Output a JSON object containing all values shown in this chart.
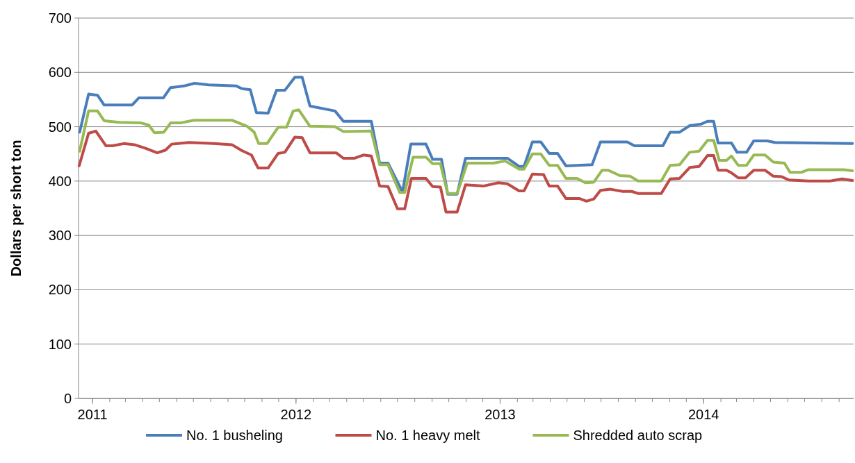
{
  "chart_data": {
    "type": "line",
    "ylabel": "Dollars per short ton",
    "ylim": [
      0,
      700
    ],
    "yticks": [
      0,
      100,
      200,
      300,
      400,
      500,
      600,
      700
    ],
    "xlim": [
      "2010-12-07",
      "2014-09-27"
    ],
    "xticks": [
      {
        "value": "2011-01-01",
        "label": "2011"
      },
      {
        "value": "2012-01-01",
        "label": "2012"
      },
      {
        "value": "2013-01-01",
        "label": "2013"
      },
      {
        "value": "2014-01-01",
        "label": "2014"
      }
    ],
    "grid": "y",
    "legend": "bottom",
    "line_style": "solid",
    "marker": "none",
    "series": [
      {
        "name": "No. 1 busheling",
        "color": "#4a7ebb",
        "x": [
          "2010-12-09",
          "2010-12-25",
          "2011-01-10",
          "2011-01-22",
          "2011-03-13",
          "2011-03-25",
          "2011-05-08",
          "2011-05-21",
          "2011-06-14",
          "2011-07-03",
          "2011-07-28",
          "2011-09-16",
          "2011-09-26",
          "2011-10-11",
          "2011-10-22",
          "2011-11-12",
          "2011-11-27",
          "2011-12-12",
          "2011-12-30",
          "2012-01-12",
          "2012-01-26",
          "2012-03-11",
          "2012-03-26",
          "2012-05-15",
          "2012-05-30",
          "2012-06-14",
          "2012-07-10",
          "2012-07-25",
          "2012-08-21",
          "2012-09-02",
          "2012-09-18",
          "2012-09-29",
          "2012-10-16",
          "2012-10-31",
          "2013-01-14",
          "2013-02-04",
          "2013-02-13",
          "2013-02-28",
          "2013-03-15",
          "2013-03-30",
          "2013-04-14",
          "2013-04-29",
          "2013-06-15",
          "2013-06-30",
          "2013-08-17",
          "2013-08-30",
          "2013-10-20",
          "2013-11-02",
          "2013-11-19",
          "2013-12-07",
          "2013-12-28",
          "2014-01-08",
          "2014-01-19",
          "2014-01-27",
          "2014-02-20",
          "2014-03-02",
          "2014-03-19",
          "2014-04-01",
          "2014-04-25",
          "2014-05-09",
          "2014-09-25"
        ],
        "values": [
          490,
          560,
          558,
          540,
          540,
          553,
          553,
          572,
          575,
          580,
          577,
          575,
          570,
          568,
          526,
          525,
          567,
          567,
          591,
          591,
          538,
          529,
          510,
          510,
          433,
          433,
          380,
          468,
          468,
          440,
          440,
          376,
          376,
          442,
          442,
          427,
          427,
          472,
          472,
          451,
          451,
          428,
          430,
          472,
          472,
          465,
          465,
          490,
          490,
          502,
          505,
          510,
          510,
          470,
          470,
          453,
          453,
          474,
          474,
          471,
          469
        ]
      },
      {
        "name": "No. 1 heavy melt",
        "color": "#be4b48",
        "x": [
          "2010-12-08",
          "2010-12-25",
          "2011-01-07",
          "2011-01-25",
          "2011-02-06",
          "2011-02-26",
          "2011-03-17",
          "2011-04-07",
          "2011-04-27",
          "2011-05-12",
          "2011-05-23",
          "2011-06-23",
          "2011-08-06",
          "2011-09-08",
          "2011-09-26",
          "2011-10-13",
          "2011-10-25",
          "2011-11-12",
          "2011-11-30",
          "2011-12-12",
          "2011-12-30",
          "2012-01-12",
          "2012-01-26",
          "2012-03-13",
          "2012-03-26",
          "2012-04-15",
          "2012-05-01",
          "2012-05-15",
          "2012-05-30",
          "2012-06-14",
          "2012-07-01",
          "2012-07-14",
          "2012-07-26",
          "2012-08-21",
          "2012-09-02",
          "2012-09-16",
          "2012-09-26",
          "2012-10-16",
          "2012-10-31",
          "2012-12-03",
          "2012-12-29",
          "2013-01-14",
          "2013-02-04",
          "2013-02-13",
          "2013-02-28",
          "2013-03-20",
          "2013-03-30",
          "2013-04-14",
          "2013-04-29",
          "2013-05-23",
          "2013-06-05",
          "2013-06-18",
          "2013-06-30",
          "2013-07-18",
          "2013-08-09",
          "2013-08-25",
          "2013-09-06",
          "2013-10-17",
          "2013-11-02",
          "2013-11-19",
          "2013-12-07",
          "2013-12-24",
          "2014-01-08",
          "2014-01-19",
          "2014-01-27",
          "2014-02-11",
          "2014-02-20",
          "2014-03-04",
          "2014-03-17",
          "2014-04-01",
          "2014-04-21",
          "2014-05-06",
          "2014-05-21",
          "2014-06-03",
          "2014-07-08",
          "2014-08-15",
          "2014-09-06",
          "2014-09-25"
        ],
        "values": [
          428,
          488,
          492,
          465,
          465,
          469,
          467,
          460,
          452,
          457,
          468,
          471,
          469,
          467,
          456,
          448,
          424,
          424,
          451,
          453,
          481,
          480,
          452,
          452,
          442,
          442,
          448,
          446,
          391,
          390,
          349,
          349,
          405,
          405,
          390,
          389,
          343,
          343,
          393,
          391,
          397,
          395,
          382,
          382,
          413,
          412,
          391,
          391,
          368,
          368,
          363,
          367,
          383,
          385,
          381,
          381,
          377,
          377,
          404,
          405,
          425,
          427,
          447,
          447,
          420,
          420,
          415,
          406,
          406,
          420,
          420,
          409,
          408,
          402,
          400,
          400,
          404,
          401
        ]
      },
      {
        "name": "Shredded auto scrap",
        "color": "#98b954",
        "x": [
          "2010-12-09",
          "2010-12-25",
          "2011-01-10",
          "2011-01-22",
          "2011-02-18",
          "2011-03-29",
          "2011-04-12",
          "2011-04-22",
          "2011-05-09",
          "2011-05-21",
          "2011-06-07",
          "2011-07-02",
          "2011-09-08",
          "2011-10-05",
          "2011-10-18",
          "2011-10-26",
          "2011-11-10",
          "2011-11-30",
          "2011-12-15",
          "2011-12-27",
          "2012-01-06",
          "2012-01-26",
          "2012-03-11",
          "2012-03-26",
          "2012-05-15",
          "2012-05-30",
          "2012-06-14",
          "2012-07-05",
          "2012-07-14",
          "2012-07-29",
          "2012-08-21",
          "2012-09-02",
          "2012-09-16",
          "2012-09-29",
          "2012-10-16",
          "2012-11-03",
          "2012-12-20",
          "2013-01-10",
          "2013-02-04",
          "2013-02-13",
          "2013-02-28",
          "2013-03-15",
          "2013-03-30",
          "2013-04-14",
          "2013-04-29",
          "2013-05-19",
          "2013-06-03",
          "2013-06-18",
          "2013-07-03",
          "2013-07-14",
          "2013-08-04",
          "2013-08-22",
          "2013-09-06",
          "2013-10-17",
          "2013-11-02",
          "2013-11-19",
          "2013-12-07",
          "2013-12-24",
          "2014-01-08",
          "2014-01-19",
          "2014-01-29",
          "2014-02-11",
          "2014-02-20",
          "2014-03-04",
          "2014-03-19",
          "2014-04-01",
          "2014-04-21",
          "2014-05-06",
          "2014-05-26",
          "2014-06-05",
          "2014-06-25",
          "2014-07-08",
          "2014-09-10",
          "2014-09-25"
        ],
        "values": [
          455,
          529,
          529,
          511,
          508,
          507,
          503,
          489,
          490,
          507,
          507,
          512,
          512,
          501,
          490,
          469,
          469,
          499,
          499,
          529,
          531,
          501,
          500,
          491,
          492,
          430,
          430,
          379,
          379,
          444,
          444,
          432,
          432,
          377,
          377,
          433,
          433,
          437,
          422,
          422,
          450,
          450,
          429,
          429,
          405,
          405,
          397,
          398,
          420,
          420,
          410,
          409,
          400,
          400,
          429,
          430,
          453,
          455,
          475,
          475,
          438,
          438,
          446,
          429,
          429,
          448,
          448,
          435,
          433,
          416,
          416,
          421,
          421,
          419
        ]
      }
    ]
  }
}
